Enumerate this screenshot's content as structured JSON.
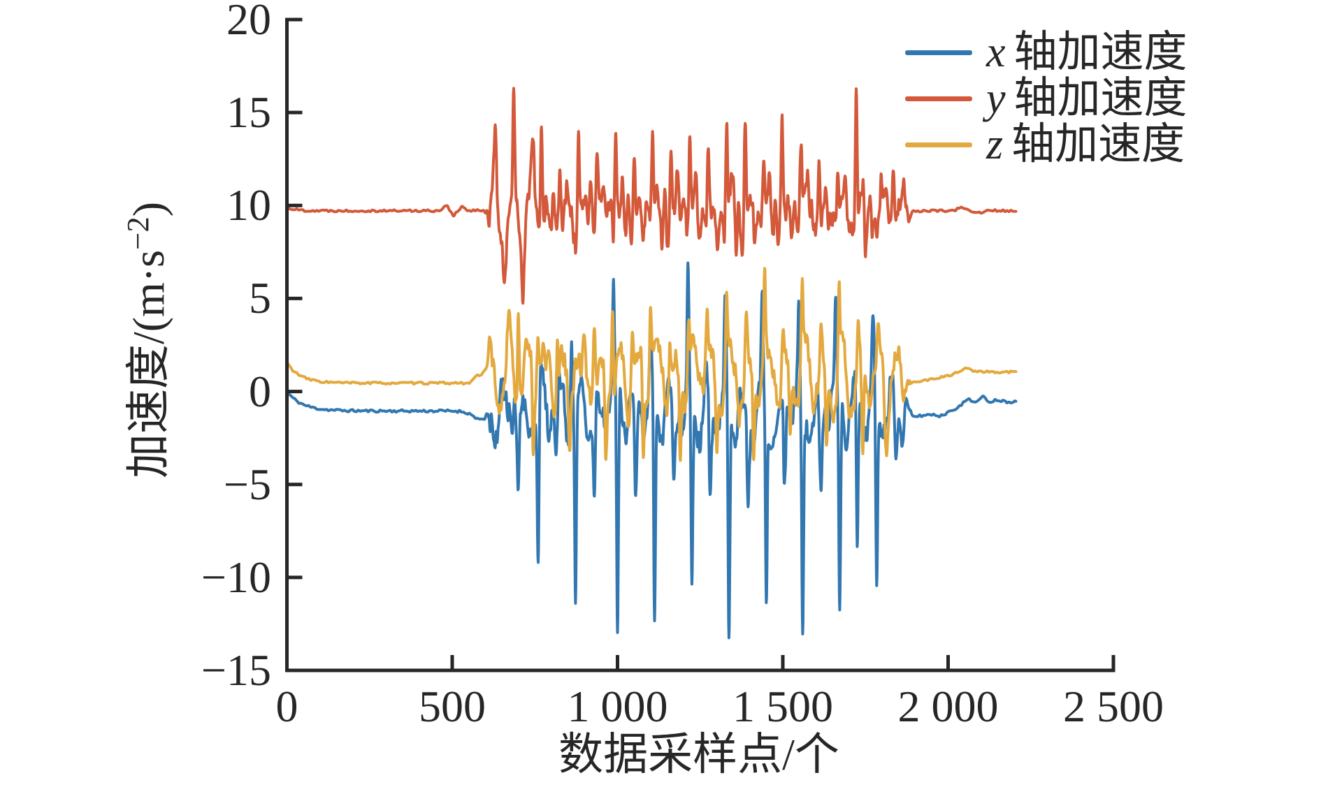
{
  "figure": {
    "background": "#ffffff",
    "axis_color": "#262626"
  },
  "chart_data": {
    "type": "line",
    "title": "",
    "xlabel": "数据采样点/个",
    "ylabel": "加速度/(m·s−2)",
    "ylabel_parts": {
      "prefix": "加速度/(m·s",
      "sup": "−2",
      "suffix": ")"
    },
    "xlim": [
      0,
      2500
    ],
    "ylim": [
      -15,
      20
    ],
    "xticks": {
      "values": [
        0,
        500,
        1000,
        1500,
        2000,
        2500
      ],
      "labels": [
        "0",
        "500",
        "1 000",
        "1 500",
        "2 000",
        "2 500"
      ]
    },
    "yticks": {
      "values": [
        -15,
        -10,
        -5,
        0,
        5,
        10,
        15,
        20
      ],
      "labels": [
        "−15",
        "−10",
        "−5",
        "0",
        "5",
        "10",
        "15",
        "20"
      ]
    },
    "grid": false,
    "legend": {
      "position": "top-right-inside",
      "frame": false,
      "items": [
        {
          "variable": "x",
          "text": "轴加速度",
          "label": "x 轴加速度",
          "color": "#3277B0"
        },
        {
          "variable": "y",
          "text": "轴加速度",
          "label": "y 轴加速度",
          "color": "#D3593A"
        },
        {
          "variable": "z",
          "text": "轴加速度",
          "label": "z 轴加速度",
          "color": "#E3A93E"
        }
      ]
    },
    "sampling": {
      "n_samples": 2206,
      "active_region": [
        618,
        1866
      ]
    },
    "series": [
      {
        "name": "x 轴加速度",
        "color": "#3277B0",
        "seed": 11,
        "draw_order": 1,
        "start_value": 0.0,
        "quiet_baseline": -1.05,
        "start_tau": 45,
        "active_base": -0.75,
        "end_from": -1.35,
        "end_value": -0.55,
        "end_ramp": [
          1880,
          2150
        ],
        "osc_amp": 1.35,
        "osc_period": 56,
        "osc_phase": 3.6,
        "noise_amp": 1.05,
        "fuzz_amp": 0.5,
        "quiet_noise": 0.07,
        "clip_min": -14.85,
        "spikes": [
          [
            595,
            -0.5,
            40
          ],
          [
            700,
            -4.3,
            5
          ],
          [
            760,
            -9.6,
            4
          ],
          [
            815,
            -4.0,
            5
          ],
          [
            873,
            -10.8,
            4
          ],
          [
            930,
            -5.3,
            5
          ],
          [
            1000,
            -13.7,
            4
          ],
          [
            1055,
            -5.8,
            5
          ],
          [
            1112,
            -13.2,
            4
          ],
          [
            1170,
            -5.0,
            5
          ],
          [
            1225,
            -11.1,
            4
          ],
          [
            1280,
            -6.3,
            5
          ],
          [
            1337,
            -13.1,
            4
          ],
          [
            1395,
            -5.6,
            5
          ],
          [
            1450,
            -11.8,
            4
          ],
          [
            1505,
            -6.1,
            5
          ],
          [
            1560,
            -12.4,
            4
          ],
          [
            1615,
            -5.3,
            5
          ],
          [
            1672,
            -11.4,
            4
          ],
          [
            1725,
            -8.8,
            4
          ],
          [
            1784,
            -10.0,
            4
          ],
          [
            1840,
            -3.8,
            6
          ],
          [
            688,
            2.3,
            4
          ],
          [
            860,
            3.3,
            4
          ],
          [
            988,
            6.0,
            4
          ],
          [
            1100,
            3.2,
            4
          ],
          [
            1213,
            6.2,
            4
          ],
          [
            1325,
            4.4,
            4
          ],
          [
            1438,
            5.4,
            4
          ],
          [
            1548,
            3.4,
            4
          ],
          [
            1660,
            4.2,
            4
          ],
          [
            1772,
            2.8,
            5
          ],
          [
            1980,
            -0.2,
            20
          ],
          [
            2060,
            0.35,
            18
          ],
          [
            2105,
            0.3,
            14
          ],
          [
            2150,
            0.1,
            15
          ]
        ]
      },
      {
        "name": "y 轴加速度",
        "color": "#D3593A",
        "seed": 22,
        "draw_order": 2,
        "start_value": 9.9,
        "quiet_baseline": 9.72,
        "start_tau": 25,
        "active_base": 9.72,
        "end_from": 9.7,
        "end_value": 9.72,
        "end_ramp": [
          1880,
          2000
        ],
        "osc_amp": 1.55,
        "osc_period": 56,
        "osc_phase": 0.6,
        "noise_amp": 1.15,
        "fuzz_amp": 0.55,
        "quiet_noise": 0.06,
        "clip_min": -100,
        "spikes": [
          [
            480,
            0.3,
            10
          ],
          [
            505,
            -0.25,
            8
          ],
          [
            532,
            0.22,
            8
          ],
          [
            630,
            3.1,
            6
          ],
          [
            658,
            -1.9,
            5
          ],
          [
            686,
            6.3,
            4
          ],
          [
            714,
            -2.3,
            5
          ],
          [
            742,
            2.4,
            6
          ],
          [
            770,
            5.9,
            4
          ],
          [
            798,
            -2.5,
            5
          ],
          [
            826,
            4.5,
            5
          ],
          [
            854,
            -2.1,
            5
          ],
          [
            882,
            5.8,
            4
          ],
          [
            910,
            -2.7,
            5
          ],
          [
            938,
            4.6,
            5
          ],
          [
            966,
            -2.4,
            5
          ],
          [
            994,
            5.3,
            4
          ],
          [
            1022,
            -2.9,
            5
          ],
          [
            1050,
            4.7,
            5
          ],
          [
            1078,
            -2.3,
            5
          ],
          [
            1106,
            5.5,
            4
          ],
          [
            1134,
            -3.1,
            5
          ],
          [
            1162,
            4.3,
            5
          ],
          [
            1190,
            -2.5,
            5
          ],
          [
            1218,
            5.6,
            4
          ],
          [
            1246,
            -2.9,
            5
          ],
          [
            1274,
            4.1,
            5
          ],
          [
            1302,
            -2.5,
            5
          ],
          [
            1330,
            6.0,
            4
          ],
          [
            1358,
            -2.7,
            5
          ],
          [
            1386,
            7.3,
            4
          ],
          [
            1414,
            -2.9,
            5
          ],
          [
            1442,
            4.6,
            5
          ],
          [
            1470,
            -2.6,
            5
          ],
          [
            1498,
            5.7,
            4
          ],
          [
            1526,
            -2.8,
            5
          ],
          [
            1554,
            4.3,
            5
          ],
          [
            1582,
            -2.4,
            5
          ],
          [
            1610,
            5.3,
            4
          ],
          [
            1638,
            -2.7,
            5
          ],
          [
            1666,
            4.0,
            5
          ],
          [
            1694,
            -2.3,
            5
          ],
          [
            1722,
            7.5,
            4
          ],
          [
            1750,
            -4.0,
            5
          ],
          [
            1778,
            2.0,
            6
          ],
          [
            1806,
            -1.5,
            6
          ],
          [
            1834,
            2.7,
            5
          ],
          [
            1858,
            -1.1,
            6
          ],
          [
            2040,
            0.15,
            15
          ],
          [
            2090,
            -0.12,
            15
          ]
        ]
      },
      {
        "name": "z 轴加速度",
        "color": "#E3A93E",
        "seed": 33,
        "draw_order": 3,
        "start_value": 1.55,
        "quiet_baseline": 0.45,
        "start_tau": 40,
        "active_base": 0.7,
        "end_from": 0.55,
        "end_value": 1.05,
        "end_ramp": [
          1900,
          2070
        ],
        "osc_amp": 1.45,
        "osc_period": 56,
        "osc_phase": 1.9,
        "noise_amp": 0.95,
        "fuzz_amp": 0.45,
        "quiet_noise": 0.06,
        "clip_min": -100,
        "spikes": [
          [
            578,
            0.35,
            18
          ],
          [
            612,
            0.9,
            20
          ],
          [
            672,
            2.4,
            5
          ],
          [
            700,
            4.3,
            4
          ],
          [
            760,
            2.4,
            5
          ],
          [
            818,
            4.2,
            4
          ],
          [
            873,
            2.2,
            5
          ],
          [
            930,
            3.8,
            4
          ],
          [
            985,
            4.5,
            4
          ],
          [
            1045,
            3.1,
            5
          ],
          [
            1100,
            4.0,
            4
          ],
          [
            1158,
            2.8,
            5
          ],
          [
            1215,
            4.2,
            4
          ],
          [
            1270,
            3.2,
            5
          ],
          [
            1330,
            4.3,
            4
          ],
          [
            1390,
            3.0,
            5
          ],
          [
            1445,
            4.1,
            4
          ],
          [
            1500,
            2.8,
            5
          ],
          [
            1558,
            4.4,
            4
          ],
          [
            1615,
            3.0,
            5
          ],
          [
            1670,
            4.1,
            4
          ],
          [
            1728,
            2.6,
            5
          ],
          [
            1788,
            2.0,
            6
          ],
          [
            745,
            -3.0,
            4
          ],
          [
            855,
            -3.4,
            4
          ],
          [
            965,
            -4.6,
            4
          ],
          [
            1078,
            -3.9,
            4
          ],
          [
            1190,
            -4.3,
            4
          ],
          [
            1300,
            -4.0,
            4
          ],
          [
            1412,
            -4.5,
            4
          ],
          [
            1522,
            -4.1,
            4
          ],
          [
            1632,
            -4.3,
            4
          ],
          [
            1742,
            -5.3,
            4
          ],
          [
            1812,
            -2.8,
            5
          ],
          [
            2055,
            0.2,
            22
          ]
        ]
      }
    ]
  }
}
